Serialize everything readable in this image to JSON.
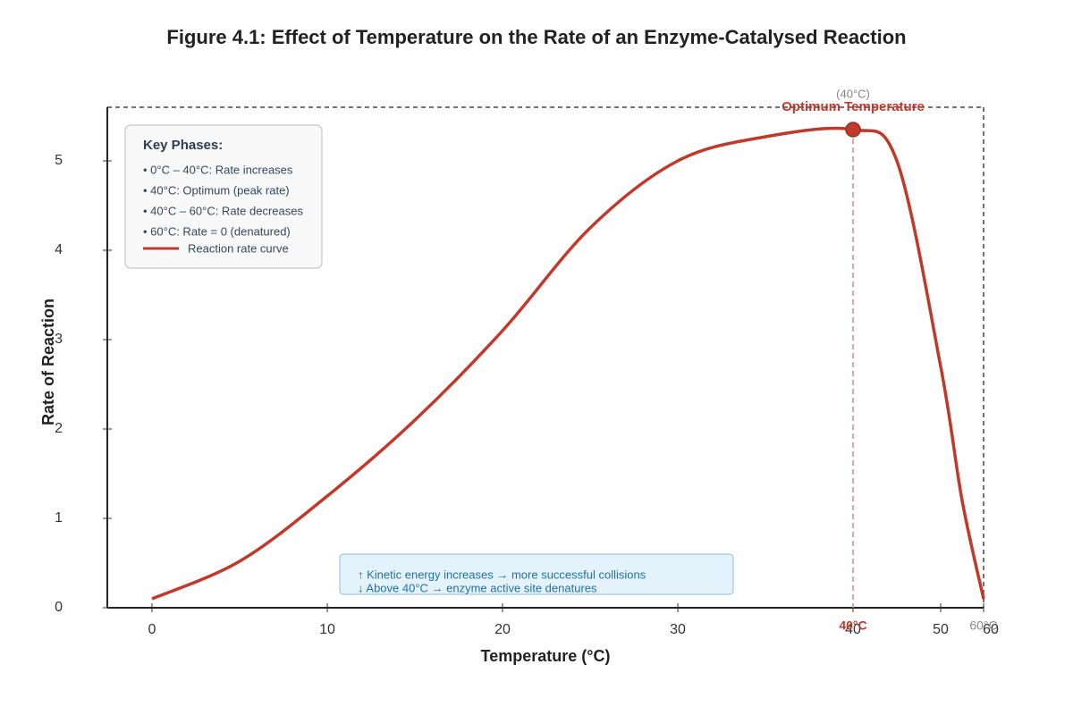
{
  "chart_data": {
    "type": "line",
    "title": "Figure 4.1: Effect of Temperature on the Rate of an Enzyme-Catalysed Reaction",
    "x_label": "Temperature (°C)",
    "y_label": "Rate of Reaction",
    "x": [
      0,
      5,
      10,
      15,
      20,
      25,
      30,
      35,
      40,
      45,
      50,
      55,
      60
    ],
    "series": [
      {
        "name": "Reaction rate curve",
        "color": "#c0392b",
        "values": [
          0.1,
          0.52,
          1.25,
          2.1,
          3.1,
          4.25,
          5.0,
          5.27,
          5.35,
          5.0,
          2.7,
          1.2,
          0.1
        ]
      }
    ],
    "xlim": [
      -2.55,
      60
    ],
    "xticks": [
      0,
      10,
      20,
      30,
      40,
      50,
      60
    ],
    "ylim": [
      0,
      5.6
    ],
    "yticks": [
      0,
      1,
      2,
      3,
      4,
      5
    ],
    "optimum": {
      "label": "Optimum Temperature",
      "sublabel": "(40°C)",
      "x": 40,
      "axis_label": "40°C"
    },
    "limit": {
      "x": 60,
      "axis_label": "60°C"
    },
    "key_box": {
      "title": "Key Phases:",
      "items": [
        "• 0°C – 40°C: Rate increases",
        "• 40°C: Optimum (peak rate)",
        "• 40°C – 60°C: Rate decreases",
        "• 60°C: Rate = 0 (denatured)"
      ]
    },
    "info_box": [
      "↑ Kinetic energy increases → more successful collisions",
      "↓ Above 40°C → enzyme active site denatures"
    ]
  }
}
